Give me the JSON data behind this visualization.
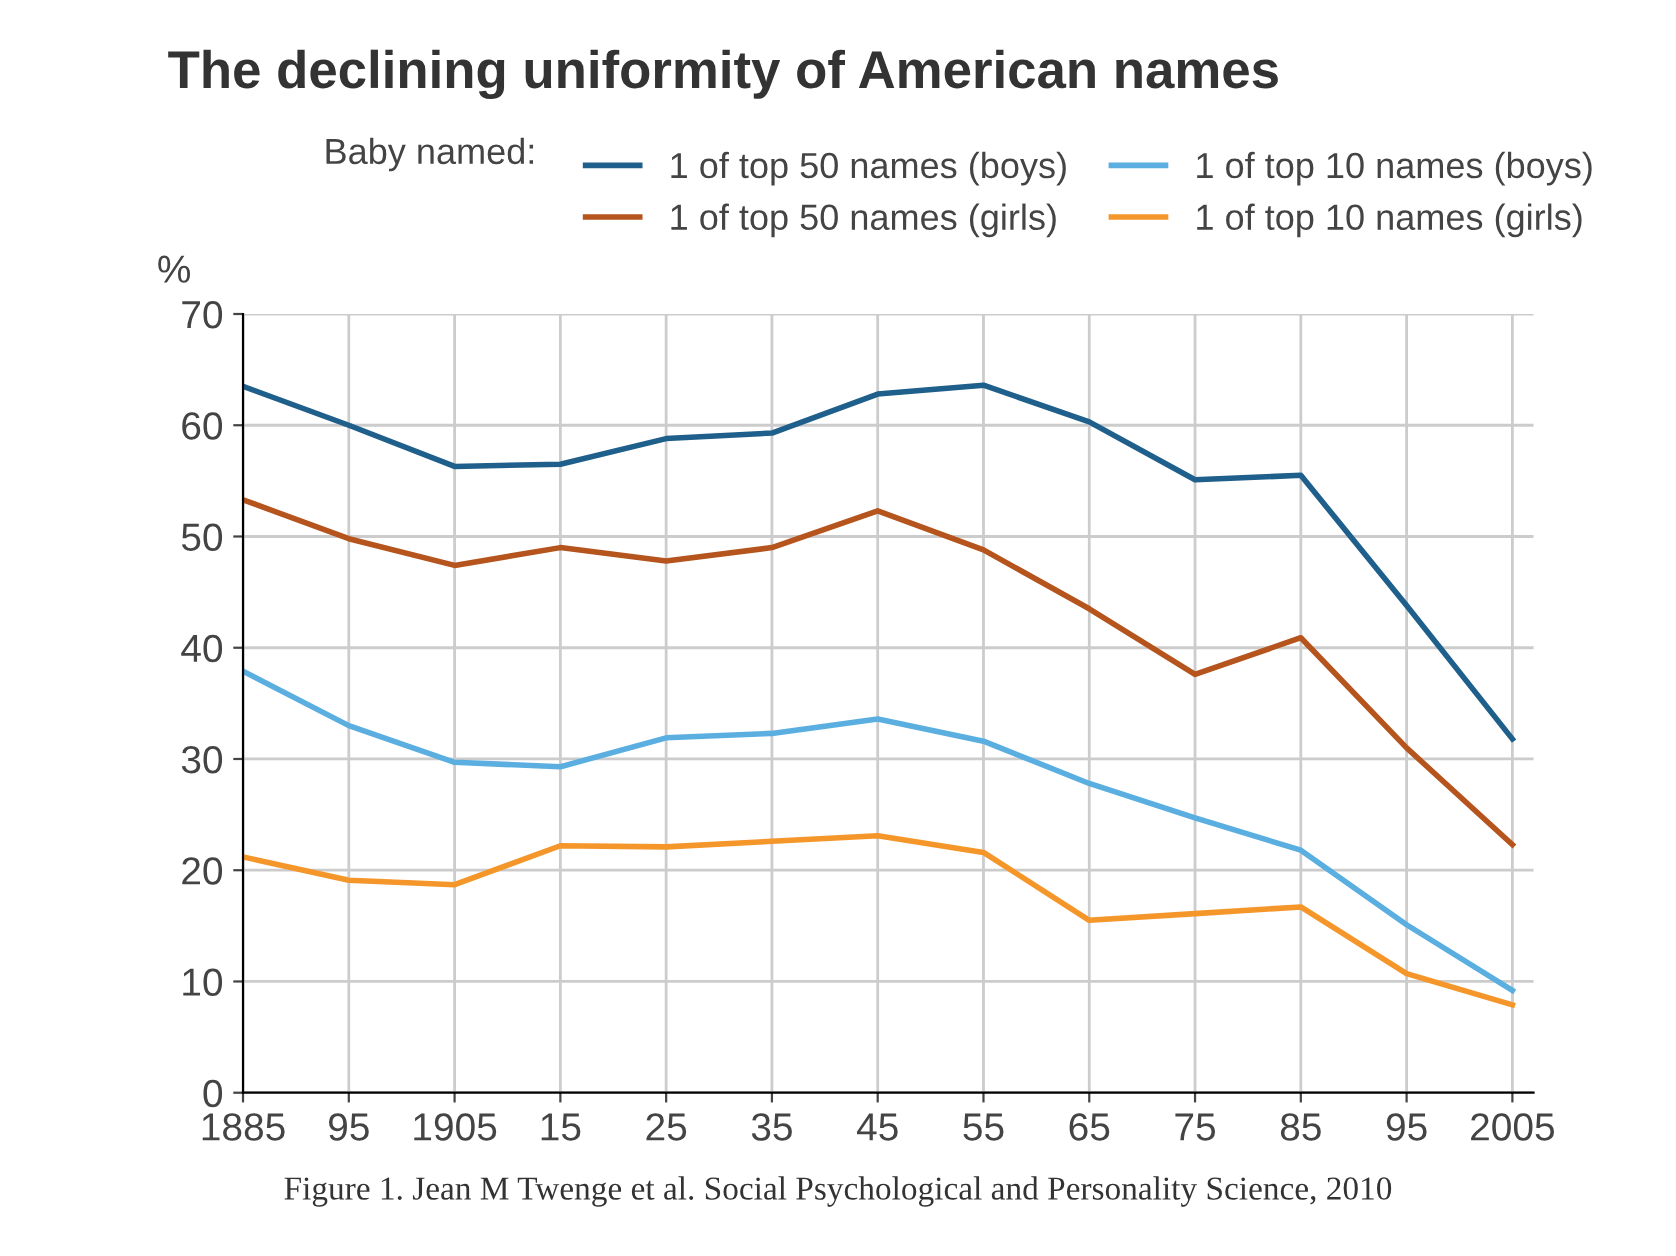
{
  "chart_data": {
    "type": "line",
    "title": "The declining uniformity of American names",
    "legend_title": "Baby named:",
    "ylabel": "%",
    "categories": [
      "1885",
      "95",
      "1905",
      "15",
      "25",
      "35",
      "45",
      "55",
      "65",
      "75",
      "85",
      "95",
      "2005"
    ],
    "series": [
      {
        "name": "1 of top 50 names (boys)",
        "color": "#1f5f8b",
        "values": [
          63.5,
          60,
          56.3,
          56.5,
          58.8,
          59.3,
          62.8,
          63.6,
          60.3,
          55.1,
          55.5,
          43.8,
          31.8
        ]
      },
      {
        "name": "1 of top 50 names (girls)",
        "color": "#b5541c",
        "values": [
          53.3,
          49.8,
          47.4,
          49,
          47.8,
          49,
          52.3,
          48.8,
          43.5,
          37.6,
          40.9,
          31,
          22.3
        ]
      },
      {
        "name": "1 of top 10 names (boys)",
        "color": "#5aaee0",
        "values": [
          37.9,
          33,
          29.7,
          29.3,
          31.9,
          32.3,
          33.6,
          31.6,
          27.8,
          24.7,
          21.8,
          15.1,
          9.2
        ]
      },
      {
        "name": "1 of top 10 names (girls)",
        "color": "#f5962a",
        "values": [
          21.2,
          19.1,
          18.7,
          22.2,
          22.1,
          22.6,
          23.1,
          21.6,
          15.5,
          16.1,
          16.7,
          10.7,
          7.9
        ]
      }
    ],
    "ylim": [
      0,
      70
    ],
    "yticks": [
      0,
      10,
      20,
      30,
      40,
      50,
      60,
      70
    ],
    "grid": true,
    "legend": "top",
    "marker": "none",
    "line_style": "solid",
    "annotations": [
      "Figure 1. Jean M Twenge et al. Social Psychological and Personality Science, 2010"
    ]
  }
}
